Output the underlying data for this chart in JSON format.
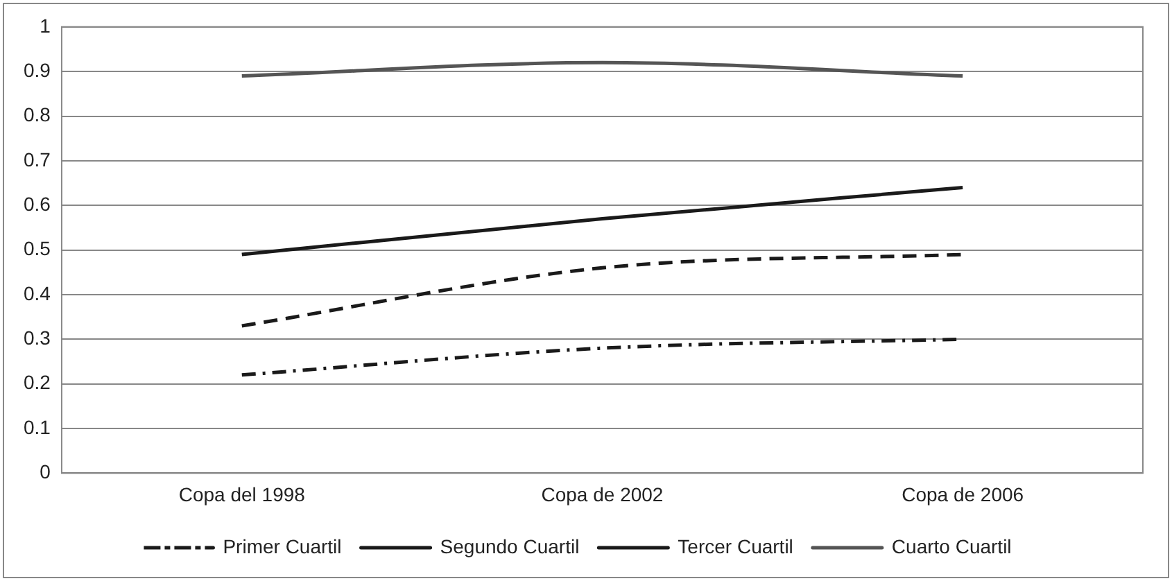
{
  "chart_data": {
    "type": "line",
    "categories": [
      "Copa del 1998",
      "Copa de 2002",
      "Copa de 2006"
    ],
    "series": [
      {
        "name": "Primer Cuartil",
        "color": "#1a1a1a",
        "line_style": "dashdot",
        "values": [
          0.22,
          0.28,
          0.3
        ]
      },
      {
        "name": "Segundo Cuartil",
        "color": "#1a1a1a",
        "line_style": "dashed",
        "values": [
          0.33,
          0.46,
          0.49
        ]
      },
      {
        "name": "Tercer Cuartil",
        "color": "#1a1a1a",
        "line_style": "solid",
        "values": [
          0.49,
          0.57,
          0.64
        ]
      },
      {
        "name": "Cuarto Cuartil",
        "color": "#555555",
        "line_style": "solid",
        "values": [
          0.89,
          0.92,
          0.89
        ]
      }
    ],
    "ylim": [
      0,
      1
    ],
    "yticks": [
      0,
      0.1,
      0.2,
      0.3,
      0.4,
      0.5,
      0.6,
      0.7,
      0.8,
      0.9,
      1
    ],
    "grid": "y",
    "legend": "bottom",
    "marker": "none"
  }
}
